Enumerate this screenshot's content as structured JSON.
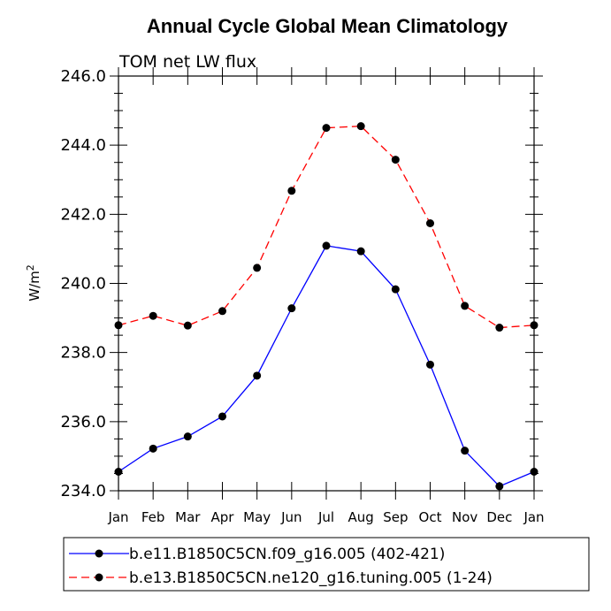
{
  "chart_data": {
    "type": "line",
    "title": "Annual Cycle Global Mean Climatology",
    "subtitle": "TOM net LW flux",
    "xlabel": "",
    "ylabel": "W/m",
    "ylabel_superscript": "2",
    "categories": [
      "Jan",
      "Feb",
      "Mar",
      "Apr",
      "May",
      "Jun",
      "Jul",
      "Aug",
      "Sep",
      "Oct",
      "Nov",
      "Dec",
      "Jan"
    ],
    "ylim": [
      234.0,
      246.0
    ],
    "yticks": [
      "234.0",
      "236.0",
      "238.0",
      "240.0",
      "242.0",
      "244.0",
      "246.0"
    ],
    "grid": false,
    "legend_position": "bottom",
    "series": [
      {
        "name": "b.e11.B1850C5CN.f09_g16.005 (402-421)",
        "color": "#0000ff",
        "dash": "solid",
        "values": [
          234.55,
          235.22,
          235.57,
          236.15,
          237.33,
          239.28,
          241.09,
          240.93,
          239.83,
          237.65,
          235.16,
          234.13,
          234.55
        ]
      },
      {
        "name": "b.e13.B1850C5CN.ne120_g16.tuning.005 (1-24)",
        "color": "#ff0000",
        "dash": "dashed",
        "values": [
          238.79,
          239.06,
          238.78,
          239.2,
          240.45,
          242.68,
          244.5,
          244.55,
          243.58,
          241.74,
          239.35,
          238.72,
          238.79
        ]
      }
    ]
  }
}
